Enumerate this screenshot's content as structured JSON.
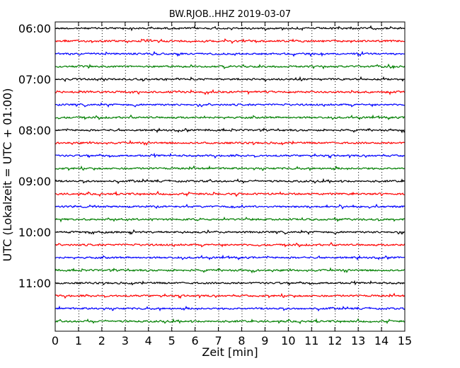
{
  "chart_data": {
    "type": "line",
    "title": "BW.RJOB..HHZ 2019-03-07",
    "xlabel": "Zeit  [min]",
    "ylabel": "UTC (Lokalzeit = UTC + 01:00)",
    "xlim": [
      0,
      15
    ],
    "x_ticks": [
      0,
      1,
      2,
      3,
      4,
      5,
      6,
      7,
      8,
      9,
      10,
      11,
      12,
      13,
      14,
      15
    ],
    "grid": "vertical-dotted",
    "y_tick_labels": [
      "06:00",
      "07:00",
      "08:00",
      "09:00",
      "10:00",
      "11:00"
    ],
    "traces_per_hour": 4,
    "trace_colors": [
      "#000000",
      "#ff0000",
      "#0000ff",
      "#007f00"
    ],
    "traces": [
      {
        "start": "06:00"
      },
      {
        "start": "06:15"
      },
      {
        "start": "06:30"
      },
      {
        "start": "06:45"
      },
      {
        "start": "07:00"
      },
      {
        "start": "07:15"
      },
      {
        "start": "07:30"
      },
      {
        "start": "07:45"
      },
      {
        "start": "08:00"
      },
      {
        "start": "08:15"
      },
      {
        "start": "08:30"
      },
      {
        "start": "08:45"
      },
      {
        "start": "09:00"
      },
      {
        "start": "09:15"
      },
      {
        "start": "09:30"
      },
      {
        "start": "09:45"
      },
      {
        "start": "10:00"
      },
      {
        "start": "10:15"
      },
      {
        "start": "10:30"
      },
      {
        "start": "10:45"
      },
      {
        "start": "11:00"
      },
      {
        "start": "11:15"
      },
      {
        "start": "11:30"
      },
      {
        "start": "11:45"
      }
    ]
  }
}
